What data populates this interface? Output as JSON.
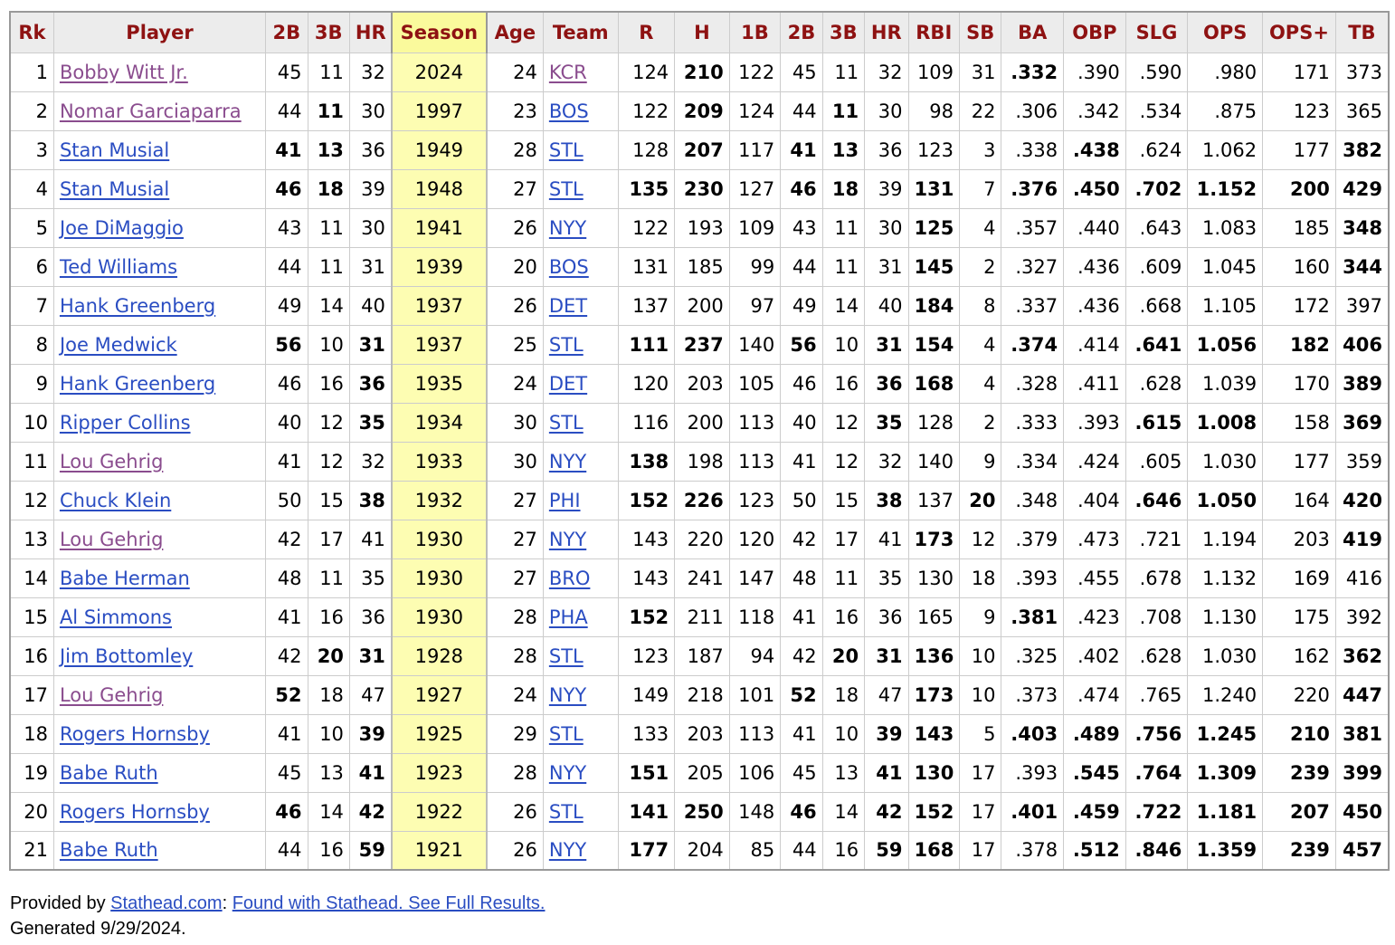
{
  "table": {
    "headers": [
      "Rk",
      "Player",
      "2B",
      "3B",
      "HR",
      "Season",
      "Age",
      "Team",
      "R",
      "H",
      "1B",
      "2B",
      "3B",
      "HR",
      "RBI",
      "SB",
      "BA",
      "OBP",
      "SLG",
      "OPS",
      "OPS+",
      "TB"
    ],
    "sorted_column": "Season",
    "rows": [
      {
        "rk": "1",
        "player": "Bobby Witt Jr.",
        "visited": true,
        "c2b": "45",
        "c3b": "11",
        "chr": "32",
        "season": "2024",
        "age": "24",
        "team": "KCR",
        "team_visited": true,
        "r": "124",
        "h": "210",
        "s1b": "122",
        "s2b": "45",
        "s3b": "11",
        "shr": "32",
        "rbi": "109",
        "sb": "31",
        "ba": ".332",
        "obp": ".390",
        "slg": ".590",
        "ops": ".980",
        "opsp": "171",
        "tb": "373",
        "bold": [
          "h",
          "ba"
        ]
      },
      {
        "rk": "2",
        "player": "Nomar Garciaparra",
        "visited": true,
        "c2b": "44",
        "c3b": "11",
        "chr": "30",
        "season": "1997",
        "age": "23",
        "team": "BOS",
        "team_visited": false,
        "r": "122",
        "h": "209",
        "s1b": "124",
        "s2b": "44",
        "s3b": "11",
        "shr": "30",
        "rbi": "98",
        "sb": "22",
        "ba": ".306",
        "obp": ".342",
        "slg": ".534",
        "ops": ".875",
        "opsp": "123",
        "tb": "365",
        "bold": [
          "c3b",
          "h",
          "s3b"
        ]
      },
      {
        "rk": "3",
        "player": "Stan Musial",
        "visited": false,
        "c2b": "41",
        "c3b": "13",
        "chr": "36",
        "season": "1949",
        "age": "28",
        "team": "STL",
        "team_visited": false,
        "r": "128",
        "h": "207",
        "s1b": "117",
        "s2b": "41",
        "s3b": "13",
        "shr": "36",
        "rbi": "123",
        "sb": "3",
        "ba": ".338",
        "obp": ".438",
        "slg": ".624",
        "ops": "1.062",
        "opsp": "177",
        "tb": "382",
        "bold": [
          "c2b",
          "c3b",
          "h",
          "s2b",
          "s3b",
          "obp",
          "tb"
        ]
      },
      {
        "rk": "4",
        "player": "Stan Musial",
        "visited": false,
        "c2b": "46",
        "c3b": "18",
        "chr": "39",
        "season": "1948",
        "age": "27",
        "team": "STL",
        "team_visited": false,
        "r": "135",
        "h": "230",
        "s1b": "127",
        "s2b": "46",
        "s3b": "18",
        "shr": "39",
        "rbi": "131",
        "sb": "7",
        "ba": ".376",
        "obp": ".450",
        "slg": ".702",
        "ops": "1.152",
        "opsp": "200",
        "tb": "429",
        "bold": [
          "c2b",
          "c3b",
          "r",
          "h",
          "s2b",
          "s3b",
          "rbi",
          "ba",
          "obp",
          "slg",
          "ops",
          "opsp",
          "tb"
        ]
      },
      {
        "rk": "5",
        "player": "Joe DiMaggio",
        "visited": false,
        "c2b": "43",
        "c3b": "11",
        "chr": "30",
        "season": "1941",
        "age": "26",
        "team": "NYY",
        "team_visited": false,
        "r": "122",
        "h": "193",
        "s1b": "109",
        "s2b": "43",
        "s3b": "11",
        "shr": "30",
        "rbi": "125",
        "sb": "4",
        "ba": ".357",
        "obp": ".440",
        "slg": ".643",
        "ops": "1.083",
        "opsp": "185",
        "tb": "348",
        "bold": [
          "rbi",
          "tb"
        ]
      },
      {
        "rk": "6",
        "player": "Ted Williams",
        "visited": false,
        "c2b": "44",
        "c3b": "11",
        "chr": "31",
        "season": "1939",
        "age": "20",
        "team": "BOS",
        "team_visited": false,
        "r": "131",
        "h": "185",
        "s1b": "99",
        "s2b": "44",
        "s3b": "11",
        "shr": "31",
        "rbi": "145",
        "sb": "2",
        "ba": ".327",
        "obp": ".436",
        "slg": ".609",
        "ops": "1.045",
        "opsp": "160",
        "tb": "344",
        "bold": [
          "rbi",
          "tb"
        ]
      },
      {
        "rk": "7",
        "player": "Hank Greenberg",
        "visited": false,
        "c2b": "49",
        "c3b": "14",
        "chr": "40",
        "season": "1937",
        "age": "26",
        "team": "DET",
        "team_visited": false,
        "r": "137",
        "h": "200",
        "s1b": "97",
        "s2b": "49",
        "s3b": "14",
        "shr": "40",
        "rbi": "184",
        "sb": "8",
        "ba": ".337",
        "obp": ".436",
        "slg": ".668",
        "ops": "1.105",
        "opsp": "172",
        "tb": "397",
        "bold": [
          "rbi"
        ]
      },
      {
        "rk": "8",
        "player": "Joe Medwick",
        "visited": false,
        "c2b": "56",
        "c3b": "10",
        "chr": "31",
        "season": "1937",
        "age": "25",
        "team": "STL",
        "team_visited": false,
        "r": "111",
        "h": "237",
        "s1b": "140",
        "s2b": "56",
        "s3b": "10",
        "shr": "31",
        "rbi": "154",
        "sb": "4",
        "ba": ".374",
        "obp": ".414",
        "slg": ".641",
        "ops": "1.056",
        "opsp": "182",
        "tb": "406",
        "bold": [
          "c2b",
          "chr",
          "r",
          "h",
          "s2b",
          "shr",
          "rbi",
          "ba",
          "slg",
          "ops",
          "opsp",
          "tb"
        ]
      },
      {
        "rk": "9",
        "player": "Hank Greenberg",
        "visited": false,
        "c2b": "46",
        "c3b": "16",
        "chr": "36",
        "season": "1935",
        "age": "24",
        "team": "DET",
        "team_visited": false,
        "r": "120",
        "h": "203",
        "s1b": "105",
        "s2b": "46",
        "s3b": "16",
        "shr": "36",
        "rbi": "168",
        "sb": "4",
        "ba": ".328",
        "obp": ".411",
        "slg": ".628",
        "ops": "1.039",
        "opsp": "170",
        "tb": "389",
        "bold": [
          "chr",
          "shr",
          "rbi",
          "tb"
        ]
      },
      {
        "rk": "10",
        "player": "Ripper Collins",
        "visited": false,
        "c2b": "40",
        "c3b": "12",
        "chr": "35",
        "season": "1934",
        "age": "30",
        "team": "STL",
        "team_visited": false,
        "r": "116",
        "h": "200",
        "s1b": "113",
        "s2b": "40",
        "s3b": "12",
        "shr": "35",
        "rbi": "128",
        "sb": "2",
        "ba": ".333",
        "obp": ".393",
        "slg": ".615",
        "ops": "1.008",
        "opsp": "158",
        "tb": "369",
        "bold": [
          "chr",
          "shr",
          "slg",
          "ops",
          "tb"
        ]
      },
      {
        "rk": "11",
        "player": "Lou Gehrig",
        "visited": true,
        "c2b": "41",
        "c3b": "12",
        "chr": "32",
        "season": "1933",
        "age": "30",
        "team": "NYY",
        "team_visited": false,
        "r": "138",
        "h": "198",
        "s1b": "113",
        "s2b": "41",
        "s3b": "12",
        "shr": "32",
        "rbi": "140",
        "sb": "9",
        "ba": ".334",
        "obp": ".424",
        "slg": ".605",
        "ops": "1.030",
        "opsp": "177",
        "tb": "359",
        "bold": [
          "r"
        ]
      },
      {
        "rk": "12",
        "player": "Chuck Klein",
        "visited": false,
        "c2b": "50",
        "c3b": "15",
        "chr": "38",
        "season": "1932",
        "age": "27",
        "team": "PHI",
        "team_visited": false,
        "r": "152",
        "h": "226",
        "s1b": "123",
        "s2b": "50",
        "s3b": "15",
        "shr": "38",
        "rbi": "137",
        "sb": "20",
        "ba": ".348",
        "obp": ".404",
        "slg": ".646",
        "ops": "1.050",
        "opsp": "164",
        "tb": "420",
        "bold": [
          "chr",
          "r",
          "h",
          "shr",
          "sb",
          "slg",
          "ops",
          "tb"
        ]
      },
      {
        "rk": "13",
        "player": "Lou Gehrig",
        "visited": true,
        "c2b": "42",
        "c3b": "17",
        "chr": "41",
        "season": "1930",
        "age": "27",
        "team": "NYY",
        "team_visited": false,
        "r": "143",
        "h": "220",
        "s1b": "120",
        "s2b": "42",
        "s3b": "17",
        "shr": "41",
        "rbi": "173",
        "sb": "12",
        "ba": ".379",
        "obp": ".473",
        "slg": ".721",
        "ops": "1.194",
        "opsp": "203",
        "tb": "419",
        "bold": [
          "rbi",
          "tb"
        ]
      },
      {
        "rk": "14",
        "player": "Babe Herman",
        "visited": false,
        "c2b": "48",
        "c3b": "11",
        "chr": "35",
        "season": "1930",
        "age": "27",
        "team": "BRO",
        "team_visited": false,
        "r": "143",
        "h": "241",
        "s1b": "147",
        "s2b": "48",
        "s3b": "11",
        "shr": "35",
        "rbi": "130",
        "sb": "18",
        "ba": ".393",
        "obp": ".455",
        "slg": ".678",
        "ops": "1.132",
        "opsp": "169",
        "tb": "416",
        "bold": []
      },
      {
        "rk": "15",
        "player": "Al Simmons",
        "visited": false,
        "c2b": "41",
        "c3b": "16",
        "chr": "36",
        "season": "1930",
        "age": "28",
        "team": "PHA",
        "team_visited": false,
        "r": "152",
        "h": "211",
        "s1b": "118",
        "s2b": "41",
        "s3b": "16",
        "shr": "36",
        "rbi": "165",
        "sb": "9",
        "ba": ".381",
        "obp": ".423",
        "slg": ".708",
        "ops": "1.130",
        "opsp": "175",
        "tb": "392",
        "bold": [
          "r",
          "ba"
        ]
      },
      {
        "rk": "16",
        "player": "Jim Bottomley",
        "visited": false,
        "c2b": "42",
        "c3b": "20",
        "chr": "31",
        "season": "1928",
        "age": "28",
        "team": "STL",
        "team_visited": false,
        "r": "123",
        "h": "187",
        "s1b": "94",
        "s2b": "42",
        "s3b": "20",
        "shr": "31",
        "rbi": "136",
        "sb": "10",
        "ba": ".325",
        "obp": ".402",
        "slg": ".628",
        "ops": "1.030",
        "opsp": "162",
        "tb": "362",
        "bold": [
          "c3b",
          "chr",
          "s3b",
          "shr",
          "rbi",
          "tb"
        ]
      },
      {
        "rk": "17",
        "player": "Lou Gehrig",
        "visited": true,
        "c2b": "52",
        "c3b": "18",
        "chr": "47",
        "season": "1927",
        "age": "24",
        "team": "NYY",
        "team_visited": false,
        "r": "149",
        "h": "218",
        "s1b": "101",
        "s2b": "52",
        "s3b": "18",
        "shr": "47",
        "rbi": "173",
        "sb": "10",
        "ba": ".373",
        "obp": ".474",
        "slg": ".765",
        "ops": "1.240",
        "opsp": "220",
        "tb": "447",
        "bold": [
          "c2b",
          "s2b",
          "rbi",
          "tb"
        ]
      },
      {
        "rk": "18",
        "player": "Rogers Hornsby",
        "visited": false,
        "c2b": "41",
        "c3b": "10",
        "chr": "39",
        "season": "1925",
        "age": "29",
        "team": "STL",
        "team_visited": false,
        "r": "133",
        "h": "203",
        "s1b": "113",
        "s2b": "41",
        "s3b": "10",
        "shr": "39",
        "rbi": "143",
        "sb": "5",
        "ba": ".403",
        "obp": ".489",
        "slg": ".756",
        "ops": "1.245",
        "opsp": "210",
        "tb": "381",
        "bold": [
          "chr",
          "shr",
          "rbi",
          "ba",
          "obp",
          "slg",
          "ops",
          "opsp",
          "tb"
        ]
      },
      {
        "rk": "19",
        "player": "Babe Ruth",
        "visited": false,
        "c2b": "45",
        "c3b": "13",
        "chr": "41",
        "season": "1923",
        "age": "28",
        "team": "NYY",
        "team_visited": false,
        "r": "151",
        "h": "205",
        "s1b": "106",
        "s2b": "45",
        "s3b": "13",
        "shr": "41",
        "rbi": "130",
        "sb": "17",
        "ba": ".393",
        "obp": ".545",
        "slg": ".764",
        "ops": "1.309",
        "opsp": "239",
        "tb": "399",
        "bold": [
          "chr",
          "r",
          "shr",
          "rbi",
          "obp",
          "slg",
          "ops",
          "opsp",
          "tb"
        ]
      },
      {
        "rk": "20",
        "player": "Rogers Hornsby",
        "visited": false,
        "c2b": "46",
        "c3b": "14",
        "chr": "42",
        "season": "1922",
        "age": "26",
        "team": "STL",
        "team_visited": false,
        "r": "141",
        "h": "250",
        "s1b": "148",
        "s2b": "46",
        "s3b": "14",
        "shr": "42",
        "rbi": "152",
        "sb": "17",
        "ba": ".401",
        "obp": ".459",
        "slg": ".722",
        "ops": "1.181",
        "opsp": "207",
        "tb": "450",
        "bold": [
          "c2b",
          "chr",
          "r",
          "h",
          "s2b",
          "shr",
          "rbi",
          "ba",
          "obp",
          "slg",
          "ops",
          "opsp",
          "tb"
        ]
      },
      {
        "rk": "21",
        "player": "Babe Ruth",
        "visited": false,
        "c2b": "44",
        "c3b": "16",
        "chr": "59",
        "season": "1921",
        "age": "26",
        "team": "NYY",
        "team_visited": false,
        "r": "177",
        "h": "204",
        "s1b": "85",
        "s2b": "44",
        "s3b": "16",
        "shr": "59",
        "rbi": "168",
        "sb": "17",
        "ba": ".378",
        "obp": ".512",
        "slg": ".846",
        "ops": "1.359",
        "opsp": "239",
        "tb": "457",
        "bold": [
          "chr",
          "r",
          "shr",
          "rbi",
          "obp",
          "slg",
          "ops",
          "opsp",
          "tb"
        ]
      }
    ]
  },
  "footer": {
    "provided_by": "Provided by ",
    "stathead_link": "Stathead.com",
    "separator": ": ",
    "full_results_link": "Found with Stathead. See Full Results.",
    "generated": "Generated 9/29/2024."
  },
  "colors": {
    "header_text": "#8e1212",
    "link": "#2a4dc2",
    "visited_link": "#8a4c8e",
    "sorted_column_bg": "#fdfdb2"
  }
}
